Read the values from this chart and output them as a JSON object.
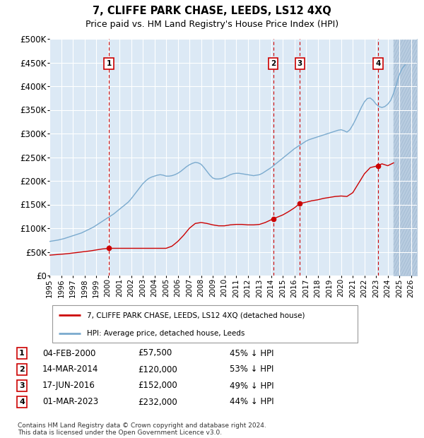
{
  "title": "7, CLIFFE PARK CHASE, LEEDS, LS12 4XQ",
  "subtitle": "Price paid vs. HM Land Registry's House Price Index (HPI)",
  "plot_bg_color": "#dce9f5",
  "grid_color": "#c8d8e8",
  "hpi_color": "#7aaace",
  "price_color": "#cc0000",
  "ylim": [
    0,
    500000
  ],
  "yticks": [
    0,
    50000,
    100000,
    150000,
    200000,
    250000,
    300000,
    350000,
    400000,
    450000,
    500000
  ],
  "xlim_start": 1995.0,
  "xlim_end": 2026.5,
  "xtick_years": [
    1995,
    1996,
    1997,
    1998,
    1999,
    2000,
    2001,
    2002,
    2003,
    2004,
    2005,
    2006,
    2007,
    2008,
    2009,
    2010,
    2011,
    2012,
    2013,
    2014,
    2015,
    2016,
    2017,
    2018,
    2019,
    2020,
    2021,
    2022,
    2023,
    2024,
    2025,
    2026
  ],
  "sales": [
    {
      "label": "1",
      "year": 2000.09,
      "price": 57500
    },
    {
      "label": "2",
      "year": 2014.2,
      "price": 120000
    },
    {
      "label": "3",
      "year": 2016.45,
      "price": 152000
    },
    {
      "label": "4",
      "year": 2023.17,
      "price": 232000
    }
  ],
  "legend_label_red": "7, CLIFFE PARK CHASE, LEEDS, LS12 4XQ (detached house)",
  "legend_label_blue": "HPI: Average price, detached house, Leeds",
  "table": [
    {
      "num": "1",
      "date": "04-FEB-2000",
      "price": "£57,500",
      "pct": "45% ↓ HPI"
    },
    {
      "num": "2",
      "date": "14-MAR-2014",
      "price": "£120,000",
      "pct": "53% ↓ HPI"
    },
    {
      "num": "3",
      "date": "17-JUN-2016",
      "price": "£152,000",
      "pct": "49% ↓ HPI"
    },
    {
      "num": "4",
      "date": "01-MAR-2023",
      "price": "£232,000",
      "pct": "44% ↓ HPI"
    }
  ],
  "footer": "Contains HM Land Registry data © Crown copyright and database right 2024.\nThis data is licensed under the Open Government Licence v3.0.",
  "hpi_data_x": [
    1995.0,
    1995.25,
    1995.5,
    1995.75,
    1996.0,
    1996.25,
    1996.5,
    1996.75,
    1997.0,
    1997.25,
    1997.5,
    1997.75,
    1998.0,
    1998.25,
    1998.5,
    1998.75,
    1999.0,
    1999.25,
    1999.5,
    1999.75,
    2000.0,
    2000.25,
    2000.5,
    2000.75,
    2001.0,
    2001.25,
    2001.5,
    2001.75,
    2002.0,
    2002.25,
    2002.5,
    2002.75,
    2003.0,
    2003.25,
    2003.5,
    2003.75,
    2004.0,
    2004.25,
    2004.5,
    2004.75,
    2005.0,
    2005.25,
    2005.5,
    2005.75,
    2006.0,
    2006.25,
    2006.5,
    2006.75,
    2007.0,
    2007.25,
    2007.5,
    2007.75,
    2008.0,
    2008.25,
    2008.5,
    2008.75,
    2009.0,
    2009.25,
    2009.5,
    2009.75,
    2010.0,
    2010.25,
    2010.5,
    2010.75,
    2011.0,
    2011.25,
    2011.5,
    2011.75,
    2012.0,
    2012.25,
    2012.5,
    2012.75,
    2013.0,
    2013.25,
    2013.5,
    2013.75,
    2014.0,
    2014.25,
    2014.5,
    2014.75,
    2015.0,
    2015.25,
    2015.5,
    2015.75,
    2016.0,
    2016.25,
    2016.5,
    2016.75,
    2017.0,
    2017.25,
    2017.5,
    2017.75,
    2018.0,
    2018.25,
    2018.5,
    2018.75,
    2019.0,
    2019.25,
    2019.5,
    2019.75,
    2020.0,
    2020.25,
    2020.5,
    2020.75,
    2021.0,
    2021.25,
    2021.5,
    2021.75,
    2022.0,
    2022.25,
    2022.5,
    2022.75,
    2023.0,
    2023.25,
    2023.5,
    2023.75,
    2024.0,
    2024.25,
    2024.5,
    2024.75,
    2025.0,
    2025.25,
    2025.5
  ],
  "hpi_data_y": [
    72000,
    73000,
    74000,
    75000,
    76500,
    78000,
    80000,
    82000,
    84000,
    86000,
    88000,
    90000,
    93000,
    96000,
    99000,
    102000,
    106000,
    110000,
    114000,
    118000,
    122000,
    126000,
    130000,
    135000,
    140000,
    145000,
    150000,
    155000,
    162000,
    170000,
    178000,
    186000,
    194000,
    200000,
    205000,
    208000,
    210000,
    212000,
    213000,
    212000,
    210000,
    210000,
    211000,
    213000,
    216000,
    220000,
    225000,
    230000,
    234000,
    237000,
    239000,
    238000,
    235000,
    228000,
    220000,
    212000,
    206000,
    204000,
    204000,
    205000,
    207000,
    210000,
    213000,
    215000,
    216000,
    216000,
    215000,
    214000,
    213000,
    212000,
    211000,
    212000,
    213000,
    216000,
    220000,
    224000,
    228000,
    233000,
    238000,
    243000,
    248000,
    253000,
    258000,
    263000,
    268000,
    272000,
    276000,
    280000,
    284000,
    287000,
    289000,
    291000,
    293000,
    295000,
    297000,
    299000,
    301000,
    303000,
    305000,
    307000,
    308000,
    306000,
    303000,
    308000,
    318000,
    330000,
    343000,
    356000,
    367000,
    374000,
    375000,
    370000,
    362000,
    357000,
    355000,
    357000,
    362000,
    370000,
    385000,
    405000,
    425000,
    438000,
    445000
  ],
  "price_data_x": [
    1995.0,
    1995.5,
    1996.0,
    1996.5,
    1997.0,
    1997.5,
    1998.0,
    1998.5,
    1999.0,
    1999.5,
    2000.09,
    2001.0,
    2002.0,
    2003.0,
    2004.0,
    2005.0,
    2005.5,
    2006.0,
    2006.5,
    2007.0,
    2007.5,
    2008.0,
    2008.5,
    2009.0,
    2009.5,
    2010.0,
    2010.5,
    2011.0,
    2011.5,
    2012.0,
    2012.5,
    2013.0,
    2013.5,
    2014.2,
    2015.0,
    2015.5,
    2016.0,
    2016.45,
    2017.0,
    2017.5,
    2018.0,
    2018.5,
    2019.0,
    2019.5,
    2020.0,
    2020.5,
    2021.0,
    2021.5,
    2022.0,
    2022.5,
    2023.17,
    2023.5,
    2024.0,
    2024.5
  ],
  "price_data_y": [
    43000,
    44000,
    45000,
    46000,
    47500,
    49000,
    50500,
    52000,
    54000,
    56000,
    57500,
    57500,
    57500,
    57500,
    57500,
    57500,
    62000,
    72000,
    85000,
    100000,
    110000,
    112000,
    110000,
    107000,
    105000,
    105000,
    107000,
    108000,
    108000,
    107000,
    107000,
    108000,
    112000,
    120000,
    128000,
    135000,
    143000,
    152000,
    155000,
    158000,
    160000,
    163000,
    165000,
    167000,
    168000,
    167000,
    175000,
    195000,
    215000,
    228000,
    232000,
    236000,
    232000,
    238000
  ]
}
